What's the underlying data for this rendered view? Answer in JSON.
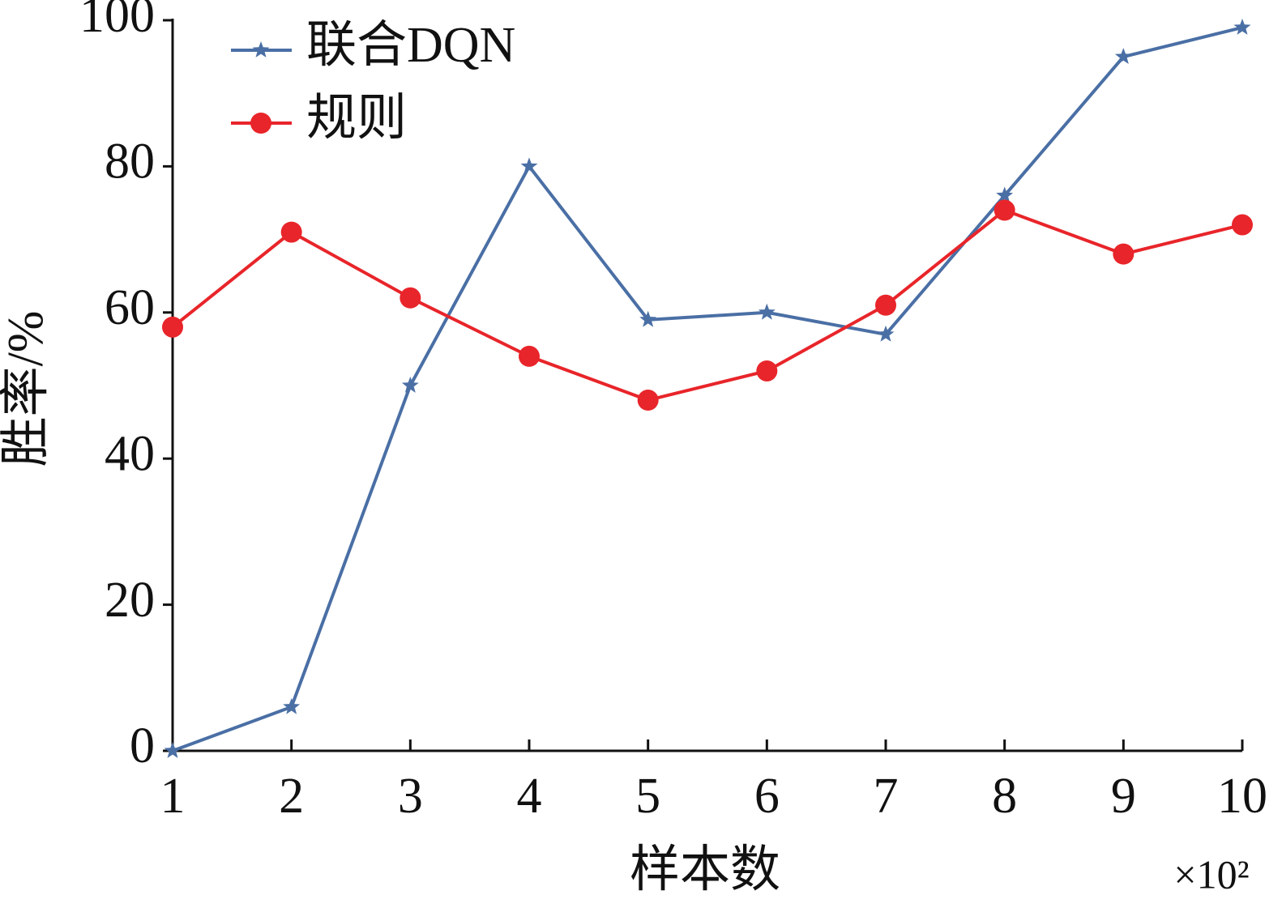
{
  "chart_data": {
    "type": "line",
    "x": [
      1,
      2,
      3,
      4,
      5,
      6,
      7,
      8,
      9,
      10
    ],
    "series": [
      {
        "name": "联合DQN",
        "color": "#4a6fa5",
        "marker": "star",
        "values": [
          0,
          6,
          50,
          80,
          59,
          60,
          57,
          76,
          95,
          99
        ]
      },
      {
        "name": "规则",
        "color": "#e8252a",
        "marker": "circle",
        "values": [
          58,
          71,
          62,
          54,
          48,
          52,
          61,
          74,
          68,
          72
        ]
      }
    ],
    "xlabel": "样本数",
    "x_multiplier": "×10²",
    "ylabel": "胜率/%",
    "xlim": [
      1,
      10
    ],
    "xticks": [
      1,
      2,
      3,
      4,
      5,
      6,
      7,
      8,
      9,
      10
    ],
    "ylim": [
      0,
      100
    ],
    "yticks": [
      0,
      20,
      40,
      60,
      80,
      100
    ],
    "legend": "upper-left"
  }
}
